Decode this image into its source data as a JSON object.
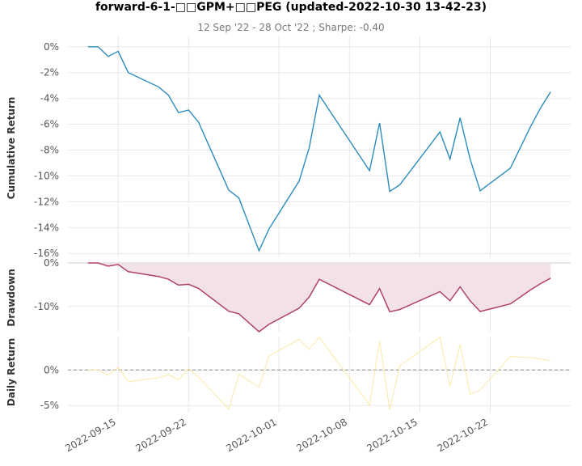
{
  "header": {
    "title": "forward-6-1-□□GPM+□□PEG (updated-2022-10-30 13-42-23)",
    "subtitle": "12 Sep '22 - 28 Oct '22 ;  Sharpe: -0.40"
  },
  "colors": {
    "cumulative": "#2b8cbe",
    "drawdown_line": "#b0406a",
    "drawdown_fill": "#f3e1e8",
    "daily": "#fde9a6",
    "grid": "#e8e8e8",
    "tick_text": "#555555",
    "zero_line": "#888888"
  },
  "chart_data": [
    {
      "type": "line",
      "name": "cumulative-return",
      "ylabel": "Cumulative Return",
      "ylim": [
        -16.3,
        0.8
      ],
      "yticks": [
        0,
        -2,
        -4,
        -6,
        -8,
        -10,
        -12,
        -14,
        -16
      ],
      "ytick_labels": [
        "0%",
        "-2%",
        "-4%",
        "-6%",
        "-8%",
        "-10%",
        "-12%",
        "-14%",
        "-16%"
      ],
      "grid": true,
      "x": [
        "2022-09-12",
        "2022-09-13",
        "2022-09-14",
        "2022-09-15",
        "2022-09-16",
        "2022-09-19",
        "2022-09-20",
        "2022-09-21",
        "2022-09-22",
        "2022-09-23",
        "2022-09-26",
        "2022-09-27",
        "2022-09-29",
        "2022-09-30",
        "2022-10-03",
        "2022-10-04",
        "2022-10-05",
        "2022-10-10",
        "2022-10-11",
        "2022-10-12",
        "2022-10-13",
        "2022-10-17",
        "2022-10-18",
        "2022-10-19",
        "2022-10-20",
        "2022-10-21",
        "2022-10-24",
        "2022-10-25",
        "2022-10-26",
        "2022-10-27",
        "2022-10-28"
      ],
      "y": [
        0.0,
        0.0,
        -0.75,
        -0.35,
        -2.0,
        -3.1,
        -3.75,
        -5.1,
        -4.9,
        -5.85,
        -11.1,
        -11.7,
        -15.8,
        -14.1,
        -10.4,
        -7.8,
        -3.75,
        -9.6,
        -5.9,
        -11.2,
        -10.7,
        -6.6,
        -8.7,
        -5.5,
        -8.7,
        -11.15,
        -9.4,
        -7.8,
        -6.2,
        -4.75,
        -3.5
      ]
    },
    {
      "type": "area",
      "name": "drawdown",
      "ylabel": "Drawdown",
      "ylim": [
        -15.8,
        0
      ],
      "yticks": [
        0,
        -10
      ],
      "ytick_labels": [
        "0%",
        "-10%"
      ],
      "grid": true,
      "x": [
        "2022-09-12",
        "2022-09-13",
        "2022-09-14",
        "2022-09-15",
        "2022-09-16",
        "2022-09-19",
        "2022-09-20",
        "2022-09-21",
        "2022-09-22",
        "2022-09-23",
        "2022-09-26",
        "2022-09-27",
        "2022-09-29",
        "2022-09-30",
        "2022-10-03",
        "2022-10-04",
        "2022-10-05",
        "2022-10-10",
        "2022-10-11",
        "2022-10-12",
        "2022-10-13",
        "2022-10-17",
        "2022-10-18",
        "2022-10-19",
        "2022-10-20",
        "2022-10-21",
        "2022-10-24",
        "2022-10-25",
        "2022-10-26",
        "2022-10-27",
        "2022-10-28"
      ],
      "y": [
        0.0,
        0.0,
        -0.75,
        -0.35,
        -2.0,
        -3.1,
        -3.75,
        -5.1,
        -4.9,
        -5.85,
        -11.1,
        -11.7,
        -15.8,
        -14.1,
        -10.4,
        -7.8,
        -3.75,
        -9.6,
        -5.9,
        -11.2,
        -10.7,
        -6.6,
        -8.7,
        -5.5,
        -8.7,
        -11.15,
        -9.4,
        -7.8,
        -6.2,
        -4.75,
        -3.5
      ]
    },
    {
      "type": "line",
      "name": "daily-return",
      "ylabel": "Daily Return",
      "ylim": [
        -6.0,
        4.7
      ],
      "yticks": [
        0,
        -5
      ],
      "ytick_labels": [
        "0%",
        "-5%"
      ],
      "grid": true,
      "zero_line": true,
      "x": [
        "2022-09-12",
        "2022-09-13",
        "2022-09-14",
        "2022-09-15",
        "2022-09-16",
        "2022-09-19",
        "2022-09-20",
        "2022-09-21",
        "2022-09-22",
        "2022-09-23",
        "2022-09-26",
        "2022-09-27",
        "2022-09-29",
        "2022-09-30",
        "2022-10-03",
        "2022-10-04",
        "2022-10-05",
        "2022-10-10",
        "2022-10-11",
        "2022-10-12",
        "2022-10-13",
        "2022-10-17",
        "2022-10-18",
        "2022-10-19",
        "2022-10-20",
        "2022-10-21",
        "2022-10-24",
        "2022-10-25",
        "2022-10-26",
        "2022-10-27",
        "2022-10-28"
      ],
      "y": [
        0.0,
        0.0,
        -0.75,
        0.4,
        -1.65,
        -1.1,
        -0.65,
        -1.4,
        0.2,
        -1.0,
        -5.5,
        -0.6,
        -2.4,
        2.0,
        4.3,
        2.9,
        4.6,
        -4.9,
        4.1,
        -5.6,
        0.6,
        4.6,
        -2.3,
        3.6,
        -3.4,
        -2.8,
        1.9,
        1.8,
        1.75,
        1.55,
        1.3
      ]
    }
  ],
  "x_axis": {
    "ticks": [
      "2022-09-15",
      "2022-09-22",
      "2022-10-01",
      "2022-10-08",
      "2022-10-15",
      "2022-10-22"
    ],
    "range": [
      "2022-09-10",
      "2022-10-30"
    ]
  }
}
